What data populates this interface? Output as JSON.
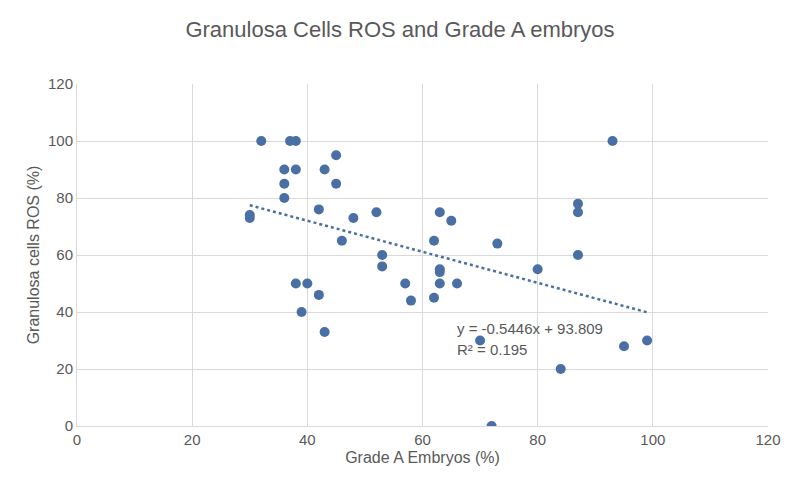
{
  "chart_data": {
    "type": "scatter",
    "title": "Granulosa Cells ROS and Grade A embryos",
    "x_label": "Grade A Embryos (%)",
    "y_label": "Granulosa cells ROS (%)",
    "x": [
      30,
      30,
      32,
      36,
      36,
      36,
      37,
      38,
      38,
      38,
      39,
      40,
      42,
      42,
      43,
      43,
      45,
      45,
      46,
      48,
      52,
      53,
      53,
      57,
      58,
      62,
      62,
      63,
      63,
      63,
      63,
      65,
      66,
      70,
      72,
      73,
      80,
      84,
      87,
      87,
      87,
      93,
      95,
      99
    ],
    "values": [
      74,
      73,
      100,
      90,
      85,
      80,
      100,
      100,
      90,
      50,
      40,
      50,
      76,
      46,
      90,
      33,
      95,
      85,
      65,
      73,
      75,
      60,
      56,
      50,
      44,
      65,
      45,
      75,
      55,
      54,
      50,
      72,
      50,
      30,
      0,
      64,
      55,
      20,
      78,
      75,
      60,
      100,
      28,
      30
    ],
    "color": "#4a6fa5",
    "marker": "circle",
    "xlim": [
      0,
      120
    ],
    "xticks": [
      0,
      20,
      40,
      60,
      80,
      100,
      120
    ],
    "ylim": [
      0,
      120
    ],
    "yticks": [
      0,
      20,
      40,
      60,
      80,
      100,
      120
    ],
    "grid": true,
    "trendline": {
      "slope": -0.5446,
      "intercept": 93.809,
      "line_style": "dotted"
    },
    "annotations": [
      "y = -0.5446x + 93.809",
      "R² = 0.195"
    ]
  }
}
